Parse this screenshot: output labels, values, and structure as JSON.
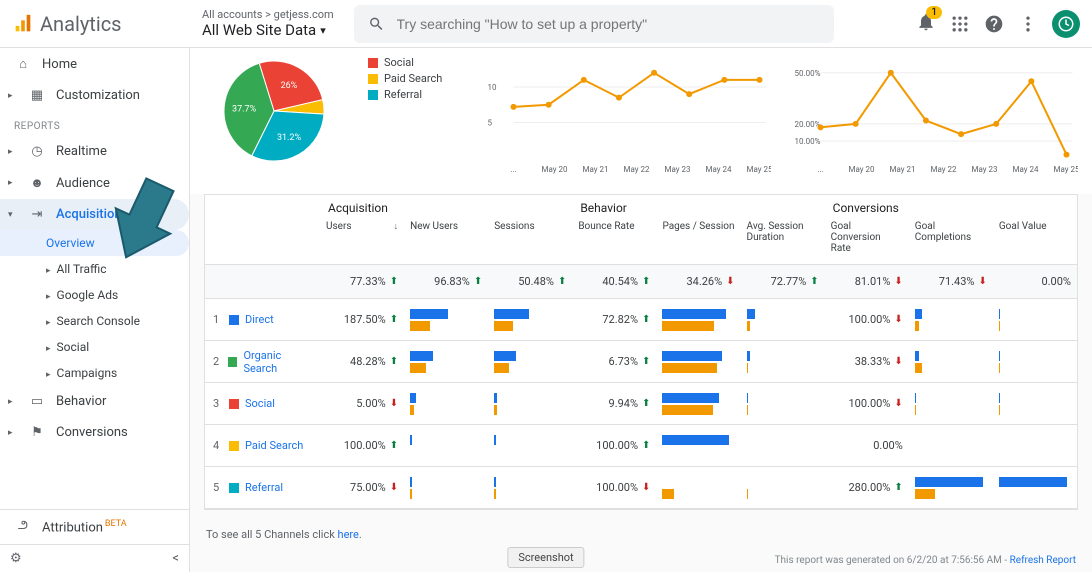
{
  "header": {
    "product": "Analytics",
    "breadcrumb": "All accounts > getjess.com",
    "view": "All Web Site Data",
    "search_placeholder": "Try searching \"How to set up a property\"",
    "notification_count": "1"
  },
  "sidebar": {
    "home": "Home",
    "customization": "Customization",
    "reports_label": "REPORTS",
    "realtime": "Realtime",
    "audience": "Audience",
    "acquisition": "Acquisition",
    "acq_children": {
      "overview": "Overview",
      "all_traffic": "All Traffic",
      "google_ads": "Google Ads",
      "search_console": "Search Console",
      "social": "Social",
      "campaigns": "Campaigns"
    },
    "behavior": "Behavior",
    "conversions": "Conversions",
    "attribution": "Attribution",
    "beta": "BETA"
  },
  "pie": {
    "slices": [
      {
        "label": "Social",
        "color": "#ea4335",
        "value": 26,
        "display": "26%"
      },
      {
        "label": "Paid Search",
        "color": "#fbbc04",
        "value": 4.6
      },
      {
        "label": "Referral",
        "color": "#00acc1",
        "value": 31.2,
        "display": "31.2%"
      },
      {
        "label": "Organic",
        "color": "#34a853",
        "value": 37.7,
        "display": "37.7%"
      }
    ],
    "legend": [
      {
        "color": "#ea4335",
        "label": "Social"
      },
      {
        "color": "#fbbc04",
        "label": "Paid Search"
      },
      {
        "color": "#00acc1",
        "label": "Referral"
      }
    ]
  },
  "line_charts": {
    "axis": [
      "...",
      "May 20",
      "May 21",
      "May 22",
      "May 23",
      "May 24",
      "May 25"
    ],
    "chart1": {
      "yticks": [
        "10",
        "5"
      ],
      "points": [
        7.2,
        7.5,
        11,
        8.5,
        12,
        9,
        11,
        11
      ]
    },
    "chart2": {
      "yticks": [
        "50.00%",
        "20.00%",
        "10.00%"
      ],
      "points": [
        18,
        20,
        50,
        22,
        14,
        20,
        45,
        2
      ]
    }
  },
  "table": {
    "groups": [
      "Acquisition",
      "Behavior",
      "Conversions"
    ],
    "columns": [
      "Users",
      "New Users",
      "Sessions",
      "Bounce Rate",
      "Pages / Session",
      "Avg. Session Duration",
      "Goal Conversion Rate",
      "Goal Completions",
      "Goal Value"
    ],
    "summary": [
      {
        "val": "77.33%",
        "dir": "up"
      },
      {
        "val": "96.83%",
        "dir": "up"
      },
      {
        "val": "50.48%",
        "dir": "up"
      },
      {
        "val": "40.54%",
        "dir": "up"
      },
      {
        "val": "34.26%",
        "dir": "down"
      },
      {
        "val": "72.77%",
        "dir": "up"
      },
      {
        "val": "81.01%",
        "dir": "down"
      },
      {
        "val": "71.43%",
        "dir": "down"
      },
      {
        "val": "0.00%",
        "dir": ""
      }
    ],
    "rows": [
      {
        "idx": "1",
        "color": "#1a73e8",
        "label": "Direct",
        "users": {
          "val": "187.50%",
          "dir": "up"
        },
        "bounce": {
          "val": "72.82%",
          "dir": "up"
        },
        "conv": {
          "val": "100.00%",
          "dir": "down"
        },
        "bar_newusers": [
          0.52,
          0.28
        ],
        "bar_sessions": [
          0.48,
          0.26
        ],
        "bar_pages": [
          0.88,
          0.72
        ],
        "bar_avg": [
          0.12,
          0.05
        ],
        "bar_comp": [
          0.1,
          0.06
        ],
        "bar_goal": [
          0.02,
          0.02
        ]
      },
      {
        "idx": "2",
        "color": "#34a853",
        "label": "Organic Search",
        "users": {
          "val": "48.28%",
          "dir": "up"
        },
        "bounce": {
          "val": "6.73%",
          "dir": "up"
        },
        "conv": {
          "val": "38.33%",
          "dir": "down"
        },
        "bar_newusers": [
          0.32,
          0.22
        ],
        "bar_sessions": [
          0.3,
          0.2
        ],
        "bar_pages": [
          0.82,
          0.76
        ],
        "bar_avg": [
          0.05,
          0.02
        ],
        "bar_comp": [
          0.06,
          0.1
        ],
        "bar_goal": [
          0.02,
          0.02
        ]
      },
      {
        "idx": "3",
        "color": "#ea4335",
        "label": "Social",
        "users": {
          "val": "5.00%",
          "dir": "down"
        },
        "bounce": {
          "val": "9.94%",
          "dir": "up"
        },
        "conv": {
          "val": "100.00%",
          "dir": "down"
        },
        "bar_newusers": [
          0.08,
          0.06
        ],
        "bar_sessions": [
          0.04,
          0.04
        ],
        "bar_pages": [
          0.78,
          0.7
        ],
        "bar_avg": [
          0.02,
          0.02
        ],
        "bar_comp": [
          0.02,
          0.02
        ],
        "bar_goal": [
          0.02,
          0.02
        ]
      },
      {
        "idx": "4",
        "color": "#fbbc04",
        "label": "Paid Search",
        "users": {
          "val": "100.00%",
          "dir": "up"
        },
        "bounce": {
          "val": "100.00%",
          "dir": "up"
        },
        "conv": {
          "val": "0.00%",
          "dir": ""
        },
        "bar_newusers": [
          0.03,
          0.0
        ],
        "bar_sessions": [
          0.02,
          0.0
        ],
        "bar_pages": [
          0.92,
          0.0
        ],
        "bar_avg": [
          0.0,
          0.0
        ],
        "bar_comp": [
          0.0,
          0.0
        ],
        "bar_goal": [
          0.0,
          0.0
        ]
      },
      {
        "idx": "5",
        "color": "#00acc1",
        "label": "Referral",
        "users": {
          "val": "75.00%",
          "dir": "down"
        },
        "bounce": {
          "val": "100.00%",
          "dir": "down"
        },
        "conv": {
          "val": "280.00%",
          "dir": "up"
        },
        "bar_newusers": [
          0.03,
          0.02
        ],
        "bar_sessions": [
          0.02,
          0.02
        ],
        "bar_pages": [
          0.0,
          0.16
        ],
        "bar_avg": [
          0.0,
          0.02
        ],
        "bar_comp": [
          0.95,
          0.28
        ],
        "bar_goal": [
          0.95,
          0.0
        ]
      }
    ],
    "bar_colors": {
      "primary": "#1a73e8",
      "secondary": "#f29900"
    }
  },
  "footer": {
    "note_prefix": "To see all 5 Channels click ",
    "note_link": "here",
    "generated_prefix": "This report was generated on 6/2/20 at 7:56:56 AM - ",
    "refresh": "Refresh Report"
  },
  "screenshot_btn": "Screenshot"
}
